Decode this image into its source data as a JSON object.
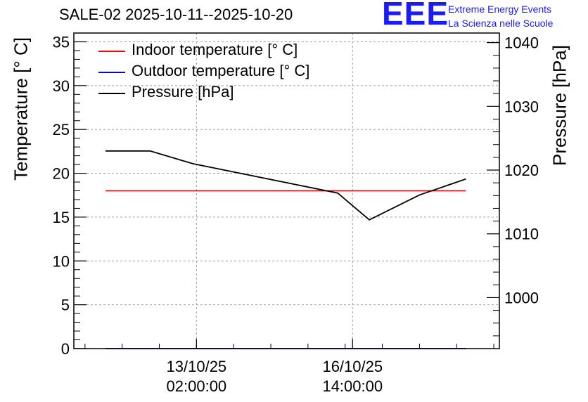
{
  "chart_data": {
    "type": "line",
    "title": "SALE-02 2025-10-11--2025-10-20",
    "ylabel": "Temperature [° C]",
    "y2label": "Pressure [hPa]",
    "ylim": [
      0,
      36
    ],
    "y2lim": [
      992,
      1041.5
    ],
    "yticks": [
      0,
      5,
      10,
      15,
      20,
      25,
      30,
      35
    ],
    "y2ticks": [
      1000,
      1010,
      1020,
      1030,
      1040
    ],
    "x_ticklabels": [
      {
        "date": "13/10/25",
        "time": "02:00:00",
        "x": "2025-10-13T02:00:00"
      },
      {
        "date": "16/10/25",
        "time": "14:00:00",
        "x": "2025-10-16T14:00:00"
      }
    ],
    "grid": true,
    "legend_position": "top-left",
    "series": [
      {
        "name": "Indoor temperature [° C]",
        "axis": "left",
        "color": "#ff0000",
        "points": [
          [
            "2025-10-11T01:00:00",
            18.0
          ],
          [
            "2025-10-19T03:00:00",
            18.0
          ]
        ]
      },
      {
        "name": "Outdoor temperature [° C]",
        "axis": "left",
        "color": "#0000ff",
        "points": [
          [
            "2025-10-11T01:00:00",
            0.0
          ],
          [
            "2025-10-19T03:00:00",
            0.0
          ]
        ]
      },
      {
        "name": "Pressure [hPa]",
        "axis": "right",
        "color": "#000000",
        "points": [
          [
            "2025-10-11T01:00:00",
            1023.0
          ],
          [
            "2025-10-12T01:00:00",
            1023.0
          ],
          [
            "2025-10-13T00:00:00",
            1021.0
          ],
          [
            "2025-10-16T06:00:00",
            1016.4
          ],
          [
            "2025-10-16T23:00:00",
            1012.2
          ],
          [
            "2025-10-18T02:00:00",
            1016.1
          ],
          [
            "2025-10-19T03:00:00",
            1018.6
          ]
        ]
      }
    ]
  },
  "logo": {
    "mark": "EEE",
    "line1": "Extreme Energy Events",
    "line2": "La Scienza nelle Scuole"
  }
}
